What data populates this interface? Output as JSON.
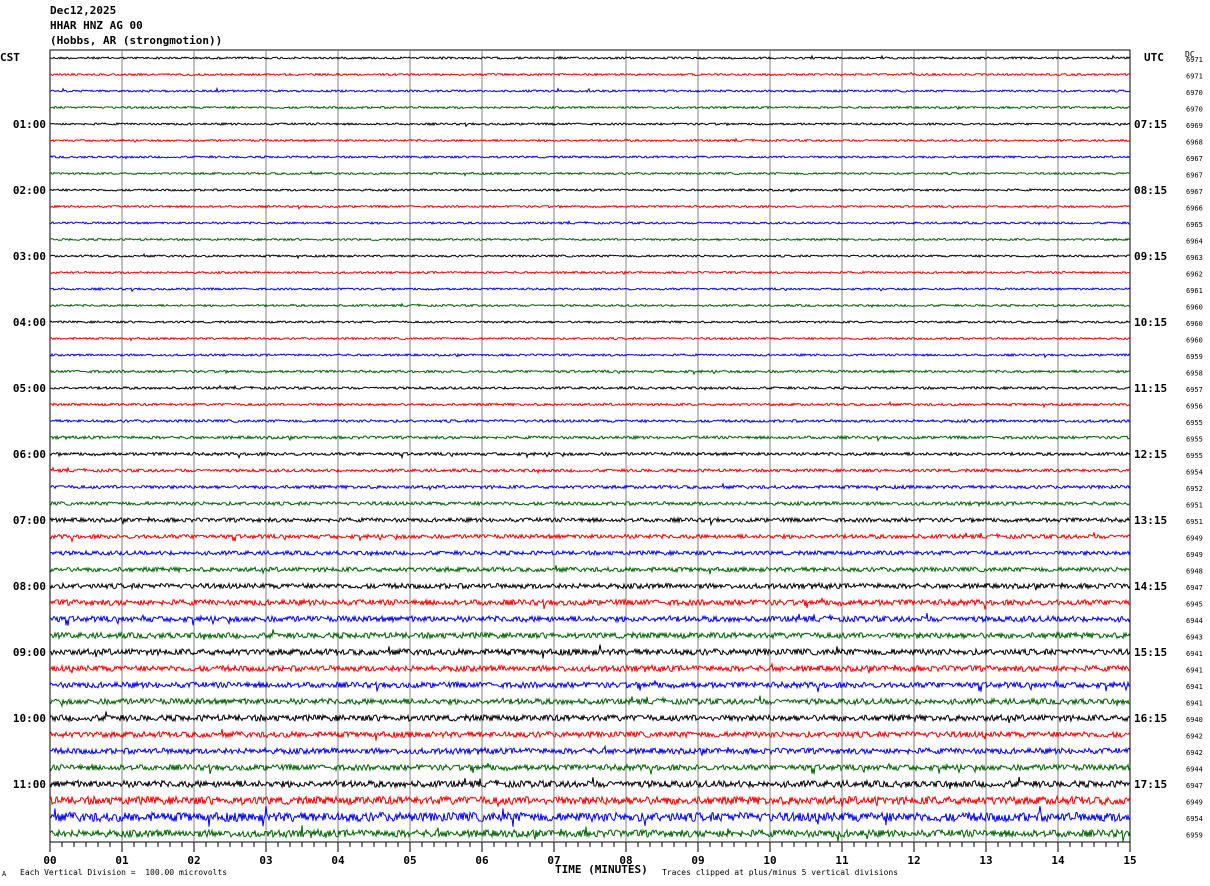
{
  "header": {
    "date": "Dec12,2025",
    "channel": "HHAR HNZ AG 00",
    "location": "(Hobbs, AR (strongmotion))"
  },
  "left_timezone": "CST",
  "right_timezone": "UTC",
  "dc_label": "DC",
  "footer": {
    "scale_note": "Each Vertical Division =  100.00 microvolts",
    "clip_note": "Traces clipped at plus/minus 5 vertical divisions",
    "logo_text": "A"
  },
  "colors": {
    "black": "#000000",
    "red": "#ff0000",
    "blue": "#0000ff",
    "green": "#006400",
    "grid": "#808080"
  },
  "chart_data": {
    "type": "line",
    "xlabel": "TIME (MINUTES)",
    "xlim": [
      0,
      15
    ],
    "x_ticks": [
      "00",
      "01",
      "02",
      "03",
      "04",
      "05",
      "06",
      "07",
      "08",
      "09",
      "10",
      "11",
      "12",
      "13",
      "14",
      "15"
    ],
    "trace_minutes": 15,
    "left_hour_labels": [
      "01:00",
      "02:00",
      "03:00",
      "04:00",
      "05:00",
      "06:00",
      "07:00",
      "08:00",
      "09:00",
      "10:00",
      "11:00"
    ],
    "right_hour_labels": [
      "07:15",
      "08:15",
      "09:15",
      "10:15",
      "11:15",
      "12:15",
      "13:15",
      "14:15",
      "15:15",
      "16:15",
      "17:15"
    ],
    "color_cycle": [
      "black",
      "red",
      "blue",
      "green"
    ],
    "dc_offsets": [
      6971,
      6971,
      6970,
      6970,
      6969,
      6968,
      6967,
      6967,
      6967,
      6966,
      6965,
      6964,
      6963,
      6962,
      6961,
      6960,
      6960,
      6960,
      6959,
      6958,
      6957,
      6956,
      6955,
      6955,
      6955,
      6954,
      6952,
      6951,
      6951,
      6949,
      6949,
      6948,
      6947,
      6945,
      6944,
      6943,
      6941,
      6941,
      6941,
      6941,
      6940,
      6942,
      6942,
      6944,
      6947,
      6949,
      6954,
      6959
    ],
    "noise_amplitude": [
      1,
      1,
      1,
      1,
      1,
      1,
      1,
      1,
      1,
      1,
      1,
      1,
      1,
      1,
      1,
      1,
      1,
      1,
      1,
      1.2,
      1.2,
      1.2,
      1.3,
      1.4,
      1.5,
      1.5,
      1.6,
      1.7,
      2,
      2,
      2,
      2.2,
      2.5,
      2.8,
      2.8,
      2.8,
      3,
      2.8,
      2.8,
      2.8,
      3,
      2.8,
      2.8,
      2.8,
      3.2,
      4,
      4.5,
      3.5
    ]
  }
}
